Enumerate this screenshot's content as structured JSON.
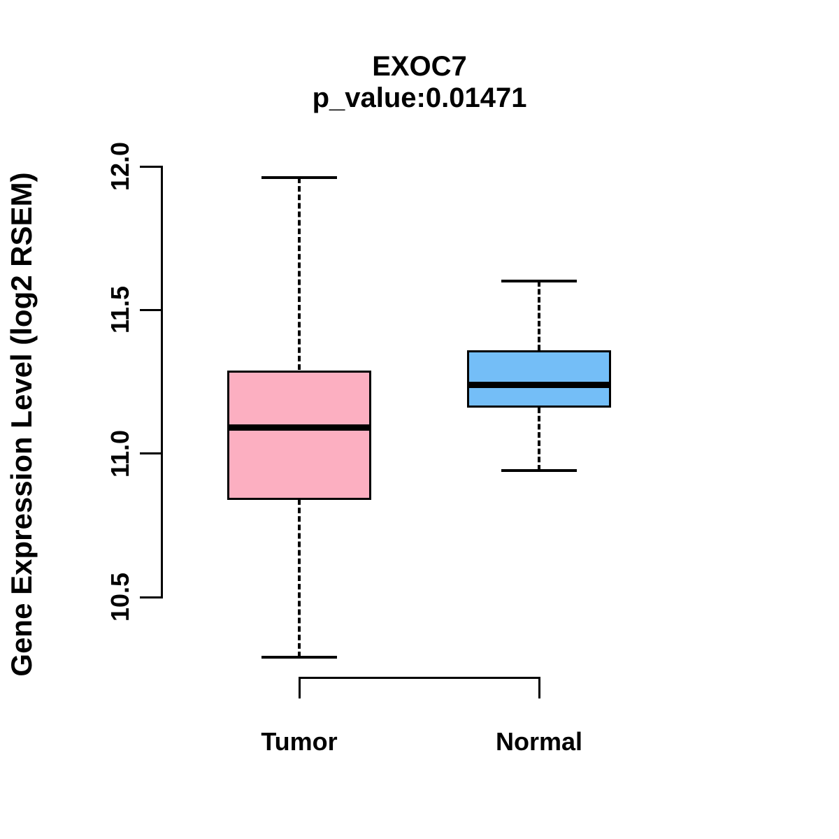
{
  "figure": {
    "background": "#ffffff",
    "stroke_color": "#000000"
  },
  "chart_data": {
    "type": "boxplot",
    "title": "EXOC7",
    "subtitle": "p_value:0.01471",
    "ylabel": "Gene Expression Level (log2 RSEM)",
    "xlabel": "",
    "categories": [
      "Tumor",
      "Normal"
    ],
    "yticks": [
      "10.5",
      "11.0",
      "11.5",
      "12.0"
    ],
    "ylim": [
      10.2,
      12.05
    ],
    "grid": false,
    "legend": "none",
    "series": [
      {
        "name": "Tumor",
        "lower_whisker": 10.29,
        "q1": 10.84,
        "median": 11.09,
        "q3": 11.29,
        "upper_whisker": 11.96,
        "color": "#FCAFC1"
      },
      {
        "name": "Normal",
        "lower_whisker": 10.94,
        "q1": 11.16,
        "median": 11.24,
        "q3": 11.36,
        "upper_whisker": 11.6,
        "color": "#74BEF7"
      }
    ]
  }
}
